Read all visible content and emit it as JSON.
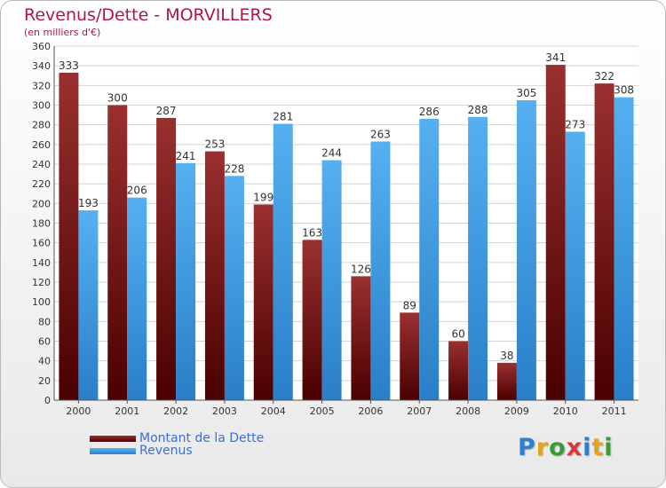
{
  "title": "Revenus/Dette - MORVILLERS",
  "subtitle": "(en milliers d'€)",
  "colors": {
    "title": "#b11646",
    "dette": "#7a1515",
    "revenus": "#3a9ae0",
    "legend_text": "#3a6fd8"
  },
  "logo": {
    "text": "Proxiti",
    "letters": [
      "P",
      "r",
      "o",
      "x",
      "i",
      "t",
      "i"
    ],
    "letter_colors": [
      "#2f7fd0",
      "#e8a21a",
      "#3a9a3a",
      "#d43c3c",
      "#2f7fd0",
      "#e8a21a",
      "#3a9a3a"
    ]
  },
  "legend": [
    {
      "label": "Montant de la Dette",
      "color": "#7a1515"
    },
    {
      "label": "Revenus",
      "color": "#3a9ae0"
    }
  ],
  "chart_data": {
    "type": "bar",
    "title": "Revenus/Dette - MORVILLERS",
    "subtitle": "(en milliers d'€)",
    "categories": [
      "2000",
      "2001",
      "2002",
      "2003",
      "2004",
      "2005",
      "2006",
      "2007",
      "2008",
      "2009",
      "2010",
      "2011"
    ],
    "series": [
      {
        "name": "Montant de la Dette",
        "values": [
          333,
          300,
          287,
          253,
          199,
          163,
          126,
          89,
          60,
          38,
          341,
          322
        ]
      },
      {
        "name": "Revenus",
        "values": [
          193,
          206,
          241,
          228,
          281,
          244,
          263,
          286,
          288,
          305,
          273,
          308
        ]
      }
    ],
    "ylim": [
      0,
      360
    ],
    "yticks": [
      0,
      20,
      40,
      60,
      80,
      100,
      120,
      140,
      160,
      180,
      200,
      220,
      240,
      260,
      280,
      300,
      320,
      340,
      360
    ],
    "grid": true,
    "legend_position": "bottom-left",
    "data_labels": true
  }
}
